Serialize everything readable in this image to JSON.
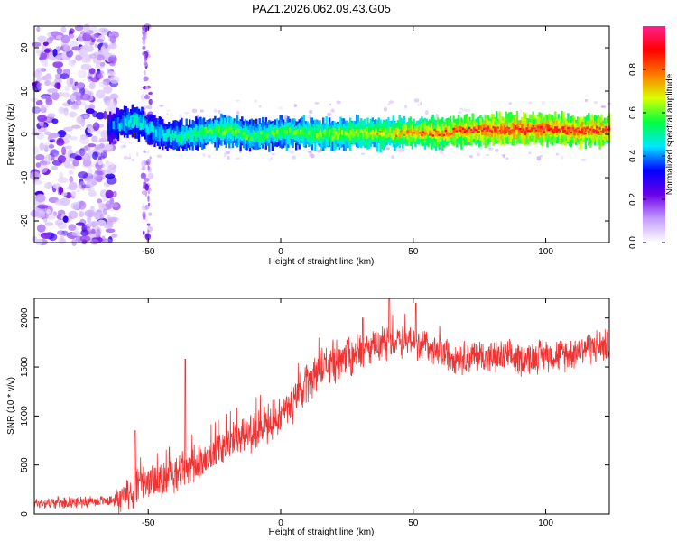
{
  "title": "PAZ1.2026.062.09.43.G05",
  "chart_data": [
    {
      "type": "heatmap",
      "xlabel": "Height of straight line (km)",
      "ylabel": "Frequency (Hz)",
      "xlim": [
        -93,
        124
      ],
      "ylim": [
        -25,
        25
      ],
      "xticks": [
        -50,
        0,
        50,
        100
      ],
      "xtick_labels": [
        "-50",
        "0",
        "50",
        "100"
      ],
      "yticks": [
        -20,
        -10,
        0,
        10,
        20
      ],
      "ytick_labels": [
        "-20",
        "-10",
        "0",
        "10",
        "20"
      ],
      "colorbar": {
        "label": "Normalized spectral amplitude",
        "range": [
          0,
          1
        ],
        "ticks": [
          0,
          0.2,
          0.4,
          0.6,
          0.8
        ],
        "tick_labels": [
          "0.0",
          "0.2",
          "0.4",
          "0.6",
          "0.8"
        ],
        "colormap": [
          "#ffffff",
          "#c39bff",
          "#6a00e6",
          "#0000ff",
          "#00e8ff",
          "#00ff40",
          "#d8ff00",
          "#ff7700",
          "#ff0000",
          "#ff1f8f"
        ]
      },
      "ridge": {
        "description_points": [
          {
            "x": -65,
            "y": 1.5,
            "amp": 0.35
          },
          {
            "x": -60,
            "y": 2.5,
            "amp": 0.45
          },
          {
            "x": -55,
            "y": 3.2,
            "amp": 0.5
          },
          {
            "x": -50,
            "y": 1.5,
            "amp": 0.45
          },
          {
            "x": -45,
            "y": 0.2,
            "amp": 0.45
          },
          {
            "x": -40,
            "y": -0.5,
            "amp": 0.5
          },
          {
            "x": -30,
            "y": 0.3,
            "amp": 0.55
          },
          {
            "x": -20,
            "y": 1.0,
            "amp": 0.6
          },
          {
            "x": -10,
            "y": -0.5,
            "amp": 0.55
          },
          {
            "x": 0,
            "y": 0.5,
            "amp": 0.6
          },
          {
            "x": 10,
            "y": 0.3,
            "amp": 0.6
          },
          {
            "x": 20,
            "y": -0.2,
            "amp": 0.65
          },
          {
            "x": 30,
            "y": 0.3,
            "amp": 0.7
          },
          {
            "x": 40,
            "y": 0.2,
            "amp": 0.72
          },
          {
            "x": 50,
            "y": 0.4,
            "amp": 0.8
          },
          {
            "x": 60,
            "y": 0.3,
            "amp": 0.85
          },
          {
            "x": 70,
            "y": 1.0,
            "amp": 0.9
          },
          {
            "x": 80,
            "y": 1.0,
            "amp": 0.95
          },
          {
            "x": 90,
            "y": 1.0,
            "amp": 0.95
          },
          {
            "x": 100,
            "y": 1.2,
            "amp": 0.95
          },
          {
            "x": 110,
            "y": 0.8,
            "amp": 0.95
          },
          {
            "x": 124,
            "y": 1.0,
            "amp": 0.95
          }
        ],
        "noise_region_x": [
          -93,
          -62
        ]
      }
    },
    {
      "type": "line",
      "xlabel": "Height of straight line (km)",
      "ylabel": "SNR (10 * v/v)",
      "xlim": [
        -93,
        124
      ],
      "ylim": [
        0,
        2200
      ],
      "xticks": [
        -50,
        0,
        50,
        100
      ],
      "xtick_labels": [
        "-50",
        "0",
        "50",
        "100"
      ],
      "yticks": [
        0,
        500,
        1000,
        1500,
        2000
      ],
      "ytick_labels": [
        "0",
        "500",
        "1000",
        "1500",
        "2000"
      ],
      "series": [
        {
          "name": "SNR",
          "color": "#ee3333",
          "trend": {
            "x": [
              -93,
              -80,
              -70,
              -62,
              -55,
              -50,
              -45,
              -40,
              -35,
              -30,
              -25,
              -20,
              -15,
              -10,
              -5,
              0,
              5,
              10,
              15,
              20,
              25,
              30,
              35,
              40,
              45,
              50,
              55,
              60,
              65,
              70,
              75,
              80,
              85,
              90,
              95,
              100,
              105,
              110,
              115,
              124
            ],
            "y": [
              110,
              120,
              130,
              140,
              250,
              330,
              320,
              420,
              480,
              560,
              620,
              720,
              790,
              860,
              930,
              1000,
              1150,
              1330,
              1480,
              1550,
              1600,
              1650,
              1700,
              1750,
              1780,
              1760,
              1720,
              1650,
              1620,
              1600,
              1620,
              1590,
              1600,
              1580,
              1600,
              1640,
              1620,
              1650,
              1700,
              1720
            ]
          },
          "spikes": [
            {
              "x": -36,
              "y": 1580
            },
            {
              "x": -55,
              "y": 850
            },
            {
              "x": 41,
              "y": 2200
            },
            {
              "x": 51,
              "y": 2150
            },
            {
              "x": 31,
              "y": 2000
            }
          ]
        }
      ]
    }
  ]
}
